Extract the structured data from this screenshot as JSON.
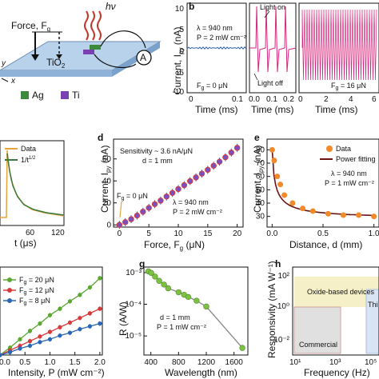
{
  "panel_letters": [
    "b",
    "d",
    "e",
    "g",
    "h"
  ],
  "panel_a": {
    "hv": "hν",
    "force": "Force, F",
    "force_sub": "g",
    "tio2": "TiO",
    "tio2_sub": "2",
    "ammeter": "A",
    "legend_ag": "Ag",
    "legend_ti": "Ti",
    "axis_x": "x",
    "axis_y": "y"
  },
  "panel_b": {
    "ylabel": "Current, I",
    "ylabel_sub": "py",
    "ylabel_unit": " (nA)",
    "xlabel": "Time (ms)",
    "annot_wavelength": "λ = 940 nm",
    "annot_power": "P = 2 mW cm⁻²",
    "light_on": "Light on",
    "light_off": "Light off",
    "force_left": "F",
    "force_left_sub": "g",
    "force_left_val": " = 0 μN",
    "force_right": "F",
    "force_right_sub": "g",
    "force_right_val": " = 16 μN",
    "yticks": [
      "10",
      "5",
      "0",
      "-5",
      "-10"
    ],
    "xticks_1": [
      "0",
      "0.1"
    ],
    "xticks_2": [
      "0.0",
      "0.1",
      "0.2"
    ],
    "xticks_3": [
      "0",
      "2",
      "4",
      "6"
    ],
    "colors": {
      "left": "#2c5fa8",
      "right": "#d6267c"
    }
  },
  "panel_c": {
    "legend": [
      "Data",
      "1/t"
    ],
    "legend_sup": "1/2",
    "xlabel": "t (μs)",
    "xticks": [
      "60",
      "120"
    ],
    "colors": {
      "data": "#e8a33a",
      "fit": "#3a7a3a"
    }
  },
  "panel_d": {
    "ylabel": "Current, I",
    "ylabel_sub": "py",
    "ylabel_unit": " (nA)",
    "xlabel": "Force, F",
    "xlabel_sub": "g",
    "xlabel_unit": " (μN)",
    "annot_sens": "Sensitivity ~ 3.6 nA/μN",
    "annot_d": "d = 1 mm",
    "annot_wavelength": "λ = 940 nm",
    "annot_power": "P = 2 mW cm⁻²",
    "annot_f0": "F",
    "annot_f0_sub": "g",
    "annot_f0_val": " = 0 μN",
    "colors": {
      "point_fill": "#7a4fc4",
      "point_edge": "#d43a3a",
      "errbar": "#3a55c4"
    }
  },
  "panel_e": {
    "ylabel": "Current, I",
    "ylabel_sub": "py",
    "ylabel_unit": " (nA)",
    "xlabel": "Distance, d (mm)",
    "legend": [
      "Data",
      "Power fitting"
    ],
    "annot_wavelength": "λ = 940 nm",
    "annot_power": "P = 1 mW cm⁻²",
    "colors": {
      "data": "#f08a2a",
      "fit": "#6b1414"
    }
  },
  "panel_f": {
    "xlabel": "Intensity, P (mW cm⁻²)",
    "legend": [
      "F",
      "F",
      "F"
    ],
    "legend_sub": "g",
    "legend_vals": [
      " = 20 μN",
      " = 12 μN",
      " = 8 μN"
    ],
    "colors": [
      "#5aa832",
      "#d63a3a",
      "#2a66b8"
    ]
  },
  "panel_g": {
    "ylabel": "R (A/W)",
    "xlabel": "Wavelength (nm)",
    "annot_d": "d = 1 mm",
    "annot_power": "P = 1 mW cm⁻²",
    "colors": {
      "point": "#7cc242",
      "line": "#888888"
    }
  },
  "panel_h": {
    "ylabel": "Responsivity (mA W⁻¹)",
    "xlabel": "Frequency (Hz)",
    "region_oxide": "Oxide-based devices",
    "region_commercial": "Commercial",
    "region_thin": "Thi",
    "colors": {
      "oxide": "#f6f0c8",
      "commercial": "#e0e0e0",
      "thin": "#d8e4f4"
    }
  },
  "chart_data": [
    {
      "panel": "d",
      "type": "scatter",
      "x": [
        0,
        1,
        2,
        3,
        4,
        5,
        6,
        7,
        8,
        9,
        10,
        11,
        12,
        13,
        14,
        15,
        16,
        17,
        18,
        19,
        20
      ],
      "y": [
        0,
        2.5,
        5.2,
        8.5,
        12,
        15.5,
        18.9,
        22.1,
        25.8,
        29.1,
        32.6,
        36.1,
        39.8,
        43.2,
        46.6,
        50.1,
        53.8,
        57.5,
        61.5,
        65.8,
        70.1
      ],
      "xlim": [
        -1,
        21
      ],
      "ylim": [
        -2,
        78
      ],
      "xticks": [
        0,
        5,
        10,
        15,
        20
      ],
      "yticks": [
        0,
        20,
        40,
        60
      ]
    },
    {
      "panel": "e",
      "type": "scatter",
      "x": [
        0,
        0.02,
        0.05,
        0.08,
        0.12,
        0.2,
        0.3,
        0.4,
        0.55,
        0.7,
        0.85,
        1.0
      ],
      "y": [
        80,
        72,
        60,
        54,
        46,
        40,
        36,
        34,
        32,
        31,
        31,
        30
      ],
      "xlim": [
        -0.05,
        1.05
      ],
      "ylim": [
        22,
        88
      ],
      "xticks": [
        0,
        0.5,
        1.0
      ],
      "yticks": [
        30,
        40,
        50,
        60,
        70,
        80
      ]
    },
    {
      "panel": "f",
      "type": "line",
      "x": [
        0,
        0.2,
        0.4,
        0.6,
        0.8,
        1.0,
        1.2,
        1.4,
        1.6,
        1.8,
        2.0
      ],
      "series": [
        {
          "name": "F = 20 μN",
          "values": [
            0,
            0.8,
            1.7,
            2.6,
            3.4,
            4.3,
            5.0,
            5.8,
            6.5,
            7.3,
            8.3
          ]
        },
        {
          "name": "F = 12 μN",
          "values": [
            0,
            0.5,
            1.0,
            1.5,
            2.0,
            2.5,
            3.0,
            3.5,
            4.0,
            4.5,
            5.0
          ]
        },
        {
          "name": "F = 8 μN",
          "values": [
            0,
            0.3,
            0.7,
            1.0,
            1.4,
            1.7,
            2.1,
            2.4,
            2.8,
            3.1,
            3.4
          ]
        }
      ],
      "xlim": [
        0,
        2.05
      ],
      "ylim": [
        0,
        9.5
      ],
      "xticks": [
        0,
        0.5,
        1.0,
        1.5,
        2.0
      ]
    },
    {
      "panel": "g",
      "type": "line",
      "x": [
        365,
        405,
        460,
        520,
        590,
        650,
        800,
        880,
        940,
        1060,
        1200,
        1720
      ],
      "y": [
        0.0011,
        0.00098,
        0.00075,
        0.00055,
        0.00042,
        0.00032,
        0.00024,
        0.0002,
        0.00017,
        0.00013,
        8.5e-05,
        4.2e-06
      ],
      "log_y": true,
      "xlim": [
        300,
        1800
      ],
      "ylim": [
        2.5e-06,
        0.0015
      ],
      "xticks": [
        400,
        800,
        1200,
        1600
      ],
      "yticks_labels": [
        "10⁻³",
        "10⁻⁴",
        "10⁻⁵"
      ]
    },
    {
      "panel": "h",
      "type": "area",
      "log_x": true,
      "log_y": true,
      "xticks_labels": [
        "10¹",
        "10³",
        "10⁵"
      ],
      "yticks_labels": [
        "10²",
        "10⁰",
        "10⁻²"
      ]
    }
  ]
}
